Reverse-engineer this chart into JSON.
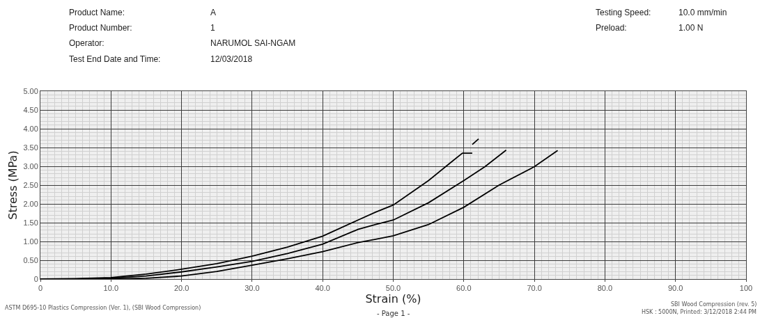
{
  "chart_data": {
    "type": "line",
    "xlabel": "Strain (%)",
    "ylabel": "Stress (MPa)",
    "xlim": [
      0,
      100
    ],
    "ylim": [
      0,
      5
    ],
    "xticks": [
      0,
      {
        "value": 10,
        "label": "10.0"
      },
      {
        "value": 20,
        "label": "20.0"
      },
      {
        "value": 30,
        "label": "30.0"
      },
      {
        "value": 40,
        "label": "40.0"
      },
      {
        "value": 50,
        "label": "50.0"
      },
      {
        "value": 60,
        "label": "60.0"
      },
      {
        "value": 70,
        "label": "70.0"
      },
      {
        "value": 80,
        "label": "80.0"
      },
      {
        "value": 90,
        "label": "90.0"
      },
      100
    ],
    "yticks": [
      0,
      {
        "value": 0.5,
        "label": "0.50"
      },
      {
        "value": 1,
        "label": "1.00"
      },
      {
        "value": 1.5,
        "label": "1.50"
      },
      {
        "value": 2,
        "label": "2.00"
      },
      {
        "value": 2.5,
        "label": "2.50"
      },
      {
        "value": 3,
        "label": "3.00"
      },
      {
        "value": 3.5,
        "label": "3.50"
      },
      {
        "value": 4,
        "label": "4.00"
      },
      {
        "value": 4.5,
        "label": "4.50"
      },
      {
        "value": 5,
        "label": "5.00"
      }
    ],
    "grid": true,
    "legend": false,
    "marker": "none",
    "line_style": "solid",
    "series": [
      {
        "color": "#000000",
        "x": [
          0,
          5,
          10,
          15,
          20,
          25,
          30,
          35,
          40,
          45,
          47.5,
          50,
          55,
          58,
          59.8,
          61.2,
          null,
          61.2,
          62.1
        ],
        "values": [
          0,
          0.01,
          0.04,
          0.13,
          0.26,
          0.41,
          0.61,
          0.85,
          1.14,
          1.57,
          1.78,
          1.97,
          2.62,
          3.08,
          3.35,
          3.35,
          null,
          3.58,
          3.73
        ]
      },
      {
        "color": "#000000",
        "x": [
          0,
          5,
          10,
          15,
          20,
          25,
          30,
          35,
          40,
          45,
          47.5,
          50,
          55,
          60,
          63,
          66
        ],
        "values": [
          0,
          0.0,
          0.02,
          0.08,
          0.19,
          0.32,
          0.47,
          0.68,
          0.93,
          1.32,
          1.45,
          1.57,
          2.03,
          2.62,
          2.99,
          3.43
        ]
      },
      {
        "color": "#000000",
        "x": [
          0,
          5,
          10,
          15,
          20,
          25,
          30,
          35,
          40,
          45,
          47.5,
          50,
          55,
          60,
          65,
          70,
          73.3
        ],
        "values": [
          0,
          0.0,
          0.0,
          0.02,
          0.08,
          0.2,
          0.37,
          0.54,
          0.73,
          0.97,
          1.06,
          1.15,
          1.45,
          1.91,
          2.5,
          2.99,
          3.42
        ]
      }
    ],
    "annotations": [
      "Product Name:",
      "A",
      "Product Number:",
      "1",
      "Operator:",
      "NARUMOL SAI-NGAM",
      "Test End Date and Time:",
      "12/03/2018",
      "Testing Speed:",
      "10.0 mm/min",
      "Preload:",
      "1.00 N",
      "ASTM D695-10 Plastics Compression (Ver. 1), (SBI Wood Compression)",
      "SBI Wood Compression (rev. 5)",
      "HSK : 5000N, Printed: 3/12/2018 2:44 PM",
      "- Page 1 -"
    ]
  }
}
